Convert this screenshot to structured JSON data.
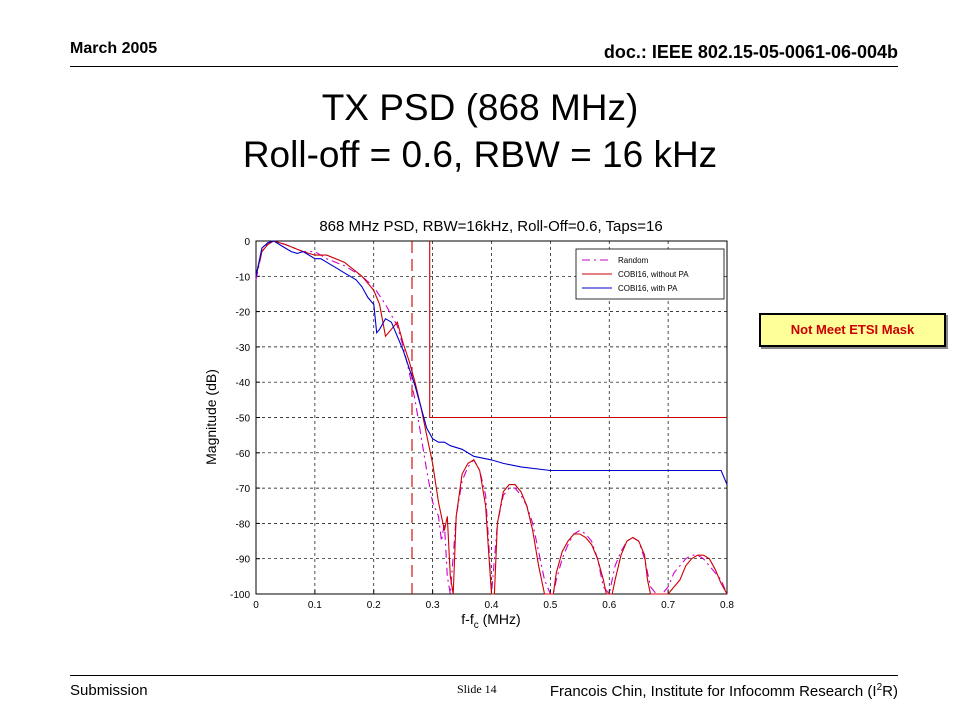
{
  "header": {
    "date": "March 2005",
    "doc_id": "doc.: IEEE 802.15-05-0061-06-004b"
  },
  "slide": {
    "title_line1": "TX PSD (868 MHz)",
    "title_line2": "Roll-off = 0.6, RBW = 16 kHz"
  },
  "callout": {
    "text": "Not Meet ETSI Mask",
    "text_color": "#cc0000",
    "bg_color": "#ffff99"
  },
  "footer": {
    "left": "Submission",
    "center": "Slide 14",
    "right_prefix": "Francois Chin, Institute for Infocomm Research (I",
    "right_sup": "2",
    "right_suffix": "R)"
  },
  "chart_data": {
    "type": "line",
    "title": "868 MHz PSD, RBW=16kHz, Roll-Off=0.6, Taps=16",
    "xlabel": "f-f",
    "xlabel_sub": "c",
    "xlabel_unit": " (MHz)",
    "ylabel": "Magnitude (dB)",
    "xlim": [
      0,
      0.8
    ],
    "ylim": [
      -100,
      0
    ],
    "xticks": [
      0,
      0.1,
      0.2,
      0.3,
      0.4,
      0.5,
      0.6,
      0.7,
      0.8
    ],
    "xtick_labels": [
      "0",
      "0.1",
      "0.2",
      "0.3",
      "0.4",
      "0.5",
      "0.6",
      "0.7",
      "0.8"
    ],
    "yticks": [
      0,
      -10,
      -20,
      -30,
      -40,
      -50,
      -60,
      -70,
      -80,
      -90,
      -100
    ],
    "ytick_labels": [
      "0",
      "-10",
      "-20",
      "-30",
      "-40",
      "-50",
      "-60",
      "-70",
      "-80",
      "-90",
      "-100"
    ],
    "grid": true,
    "legend_position": "top-right",
    "series": [
      {
        "name": "Random",
        "color": "#cc00cc",
        "dash": "dashdot",
        "x": [
          0,
          0.01,
          0.02,
          0.03,
          0.05,
          0.08,
          0.1,
          0.12,
          0.15,
          0.18,
          0.2,
          0.22,
          0.24,
          0.25,
          0.26,
          0.27,
          0.28,
          0.29,
          0.3,
          0.31,
          0.315,
          0.32,
          0.325,
          0.33,
          0.34,
          0.35,
          0.36,
          0.37,
          0.38,
          0.39,
          0.395,
          0.4,
          0.41,
          0.42,
          0.43,
          0.44,
          0.45,
          0.46,
          0.47,
          0.48,
          0.49,
          0.5,
          0.505,
          0.51,
          0.52,
          0.53,
          0.54,
          0.55,
          0.56,
          0.57,
          0.58,
          0.59,
          0.6,
          0.61,
          0.62,
          0.63,
          0.64,
          0.65,
          0.66,
          0.67,
          0.68,
          0.69,
          0.7,
          0.71,
          0.72,
          0.73,
          0.74,
          0.75,
          0.76,
          0.77,
          0.78,
          0.79,
          0.8
        ],
        "y": [
          -11,
          -3,
          -0.5,
          0,
          -1,
          -3,
          -3,
          -5,
          -7,
          -10,
          -13,
          -18,
          -24,
          -30,
          -37,
          -45,
          -55,
          -65,
          -74,
          -78,
          -85,
          -80,
          -95,
          -100,
          -78,
          -68,
          -64,
          -62,
          -65,
          -72,
          -85,
          -100,
          -80,
          -72,
          -70,
          -70,
          -72,
          -75,
          -80,
          -88,
          -96,
          -100,
          -100,
          -96,
          -90,
          -86,
          -83,
          -82,
          -83,
          -85,
          -90,
          -98,
          -100,
          -92,
          -88,
          -85,
          -84,
          -85,
          -90,
          -98,
          -100,
          -100,
          -98,
          -94,
          -92,
          -90,
          -89,
          -89,
          -90,
          -92,
          -94,
          -96,
          -100
        ]
      },
      {
        "name": "COBI16, without PA",
        "color": "#cc0000",
        "dash": "solid",
        "x": [
          0,
          0.01,
          0.02,
          0.03,
          0.05,
          0.08,
          0.1,
          0.12,
          0.15,
          0.18,
          0.2,
          0.21,
          0.22,
          0.24,
          0.25,
          0.26,
          0.27,
          0.28,
          0.29,
          0.3,
          0.31,
          0.32,
          0.325,
          0.33,
          0.335,
          0.34,
          0.35,
          0.36,
          0.37,
          0.38,
          0.39,
          0.395,
          0.4,
          0.405,
          0.41,
          0.42,
          0.43,
          0.44,
          0.45,
          0.46,
          0.47,
          0.48,
          0.49,
          0.5,
          0.505,
          0.51,
          0.52,
          0.53,
          0.54,
          0.55,
          0.56,
          0.57,
          0.58,
          0.59,
          0.595,
          0.6,
          0.605,
          0.61,
          0.62,
          0.63,
          0.64,
          0.65,
          0.66,
          0.665,
          0.67,
          0.68,
          0.7,
          0.72,
          0.73,
          0.74,
          0.75,
          0.76,
          0.77,
          0.78,
          0.79,
          0.8
        ],
        "y": [
          -10,
          -3,
          -1,
          0,
          -1,
          -3,
          -4,
          -4,
          -6,
          -10,
          -14,
          -18,
          -27,
          -23,
          -29,
          -34,
          -40,
          -47,
          -55,
          -63,
          -74,
          -82,
          -78,
          -95,
          -100,
          -78,
          -66,
          -63,
          -62,
          -65,
          -75,
          -88,
          -100,
          -100,
          -80,
          -71,
          -69,
          -69,
          -71,
          -75,
          -82,
          -92,
          -100,
          -100,
          -100,
          -94,
          -88,
          -85,
          -83,
          -83,
          -84,
          -86,
          -90,
          -96,
          -100,
          -100,
          -100,
          -96,
          -89,
          -85,
          -84,
          -85,
          -89,
          -96,
          -100,
          -100,
          -100,
          -96,
          -92,
          -90,
          -89,
          -89,
          -90,
          -93,
          -97,
          -100
        ]
      },
      {
        "name": "COBI16, with PA",
        "color": "#0000cc",
        "dash": "solid",
        "x": [
          0,
          0.01,
          0.02,
          0.03,
          0.04,
          0.05,
          0.06,
          0.07,
          0.08,
          0.09,
          0.1,
          0.11,
          0.12,
          0.13,
          0.14,
          0.15,
          0.16,
          0.17,
          0.18,
          0.19,
          0.2,
          0.205,
          0.21,
          0.22,
          0.23,
          0.24,
          0.25,
          0.26,
          0.27,
          0.28,
          0.29,
          0.3,
          0.31,
          0.32,
          0.33,
          0.35,
          0.37,
          0.4,
          0.42,
          0.45,
          0.5,
          0.55,
          0.6,
          0.65,
          0.7,
          0.75,
          0.79,
          0.8
        ],
        "y": [
          -10,
          -2,
          -0.5,
          0,
          -1,
          -2,
          -3,
          -3.5,
          -3,
          -4,
          -5,
          -5,
          -6,
          -7,
          -8,
          -9,
          -10,
          -11,
          -13,
          -16,
          -18,
          -26,
          -25,
          -22,
          -23,
          -27,
          -31,
          -36,
          -41,
          -47,
          -53,
          -56,
          -57,
          -57,
          -58,
          -59,
          -61,
          -62,
          -63,
          -64,
          -65,
          -65,
          -65,
          -65,
          -65,
          -65,
          -65,
          -69
        ]
      },
      {
        "name": "",
        "color": "#cc0000",
        "dash": "dashed",
        "x": [
          0.265,
          0.265
        ],
        "y": [
          0,
          -100
        ]
      },
      {
        "name": "",
        "color": "#cc0000",
        "dash": "solid",
        "x": [
          0.295,
          0.295,
          0.8
        ],
        "y": [
          0,
          -50,
          -50
        ]
      }
    ]
  }
}
